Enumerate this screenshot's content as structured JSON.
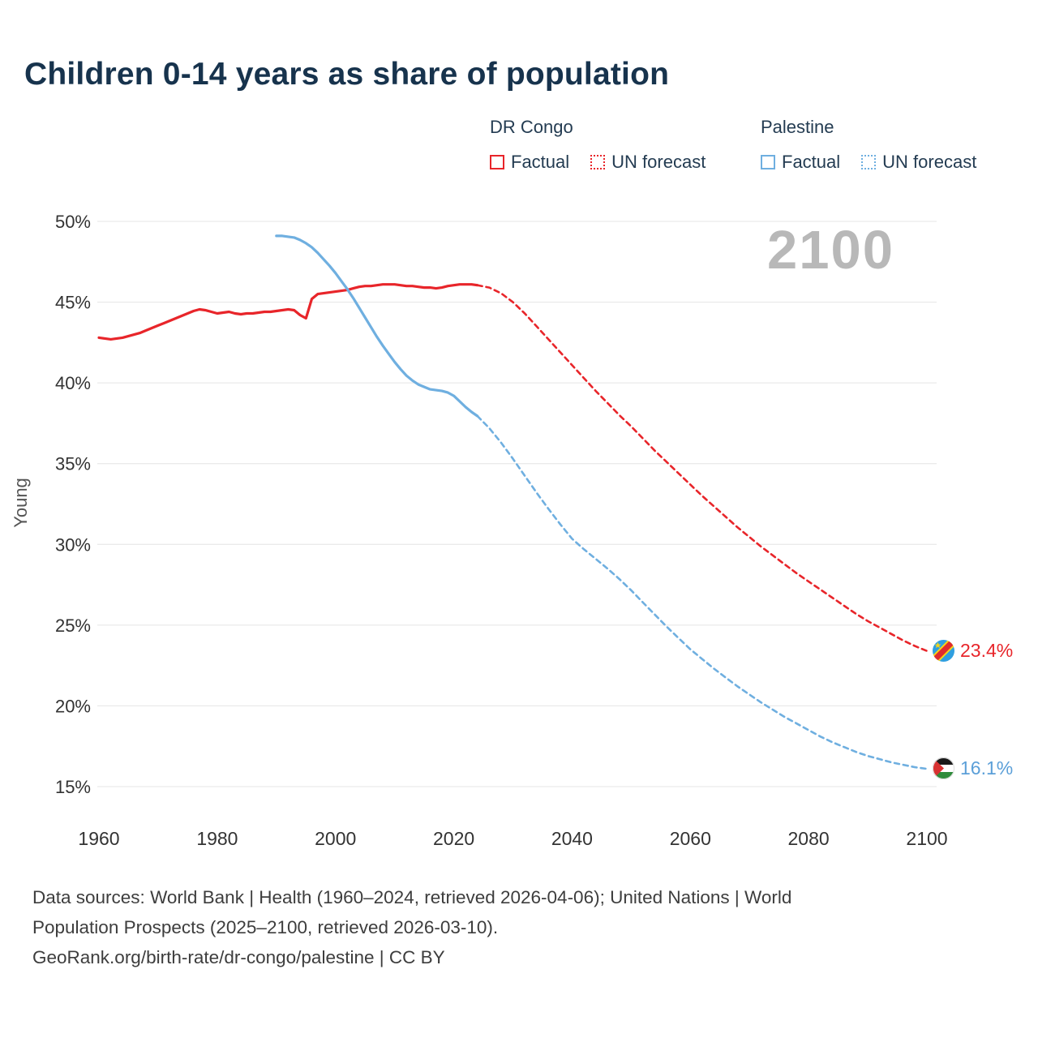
{
  "title": "Children 0-14 years as share of population",
  "watermark": "2100",
  "ylabel": "Young",
  "legend": {
    "groups": [
      {
        "name": "DR Congo",
        "color": "#e8252a",
        "items": [
          {
            "label": "Factual",
            "style": "solid"
          },
          {
            "label": "UN forecast",
            "style": "dotted"
          }
        ]
      },
      {
        "name": "Palestine",
        "color": "#6fafe0",
        "items": [
          {
            "label": "Factual",
            "style": "solid"
          },
          {
            "label": "UN forecast",
            "style": "dotted"
          }
        ]
      }
    ]
  },
  "end_labels": [
    {
      "value": "23.4%",
      "color": "#e8252a",
      "flag": "dr-congo"
    },
    {
      "value": "16.1%",
      "color": "#5b9fd8",
      "flag": "palestine"
    }
  ],
  "footer": {
    "lines": [
      "Data sources: World Bank | Health (1960–2024, retrieved 2026-04-06); United Nations | World",
      "Population Prospects (2025–2100, retrieved 2026-03-10).",
      "GeoRank.org/birth-rate/dr-congo/palestine | CC BY"
    ]
  },
  "chart_data": {
    "type": "line",
    "title": "Children 0-14 years as share of population",
    "xlabel": "",
    "ylabel": "Young",
    "xlim": [
      1960,
      2100
    ],
    "ylim": [
      15,
      50
    ],
    "x_ticks": [
      1960,
      1980,
      2000,
      2020,
      2040,
      2060,
      2080,
      2100
    ],
    "y_ticks": [
      15,
      20,
      25,
      30,
      35,
      40,
      45,
      50
    ],
    "grid": "horizontal",
    "legend_position": "top-right",
    "series": [
      {
        "name": "DR Congo — Factual",
        "color": "#e8252a",
        "dash": "solid",
        "points": [
          [
            1960,
            42.8
          ],
          [
            1961,
            42.75
          ],
          [
            1962,
            42.7
          ],
          [
            1963,
            42.75
          ],
          [
            1964,
            42.8
          ],
          [
            1965,
            42.9
          ],
          [
            1966,
            43.0
          ],
          [
            1967,
            43.1
          ],
          [
            1968,
            43.25
          ],
          [
            1969,
            43.4
          ],
          [
            1970,
            43.55
          ],
          [
            1971,
            43.7
          ],
          [
            1972,
            43.85
          ],
          [
            1973,
            44.0
          ],
          [
            1974,
            44.15
          ],
          [
            1975,
            44.3
          ],
          [
            1976,
            44.45
          ],
          [
            1977,
            44.55
          ],
          [
            1978,
            44.5
          ],
          [
            1979,
            44.4
          ],
          [
            1980,
            44.3
          ],
          [
            1981,
            44.35
          ],
          [
            1982,
            44.4
          ],
          [
            1983,
            44.3
          ],
          [
            1984,
            44.25
          ],
          [
            1985,
            44.3
          ],
          [
            1986,
            44.3
          ],
          [
            1987,
            44.35
          ],
          [
            1988,
            44.4
          ],
          [
            1989,
            44.4
          ],
          [
            1990,
            44.45
          ],
          [
            1991,
            44.5
          ],
          [
            1992,
            44.55
          ],
          [
            1993,
            44.5
          ],
          [
            1994,
            44.2
          ],
          [
            1995,
            44.0
          ],
          [
            1996,
            45.2
          ],
          [
            1997,
            45.5
          ],
          [
            1998,
            45.55
          ],
          [
            1999,
            45.6
          ],
          [
            2000,
            45.65
          ],
          [
            2001,
            45.7
          ],
          [
            2002,
            45.75
          ],
          [
            2003,
            45.85
          ],
          [
            2004,
            45.95
          ],
          [
            2005,
            46.0
          ],
          [
            2006,
            46.0
          ],
          [
            2007,
            46.05
          ],
          [
            2008,
            46.1
          ],
          [
            2009,
            46.1
          ],
          [
            2010,
            46.1
          ],
          [
            2011,
            46.05
          ],
          [
            2012,
            46.0
          ],
          [
            2013,
            46.0
          ],
          [
            2014,
            45.95
          ],
          [
            2015,
            45.9
          ],
          [
            2016,
            45.9
          ],
          [
            2017,
            45.85
          ],
          [
            2018,
            45.9
          ],
          [
            2019,
            46.0
          ],
          [
            2020,
            46.05
          ],
          [
            2021,
            46.1
          ],
          [
            2022,
            46.1
          ],
          [
            2023,
            46.1
          ],
          [
            2024,
            46.05
          ]
        ]
      },
      {
        "name": "DR Congo — UN forecast",
        "color": "#e8252a",
        "dash": "dashed",
        "points": [
          [
            2024,
            46.05
          ],
          [
            2026,
            45.9
          ],
          [
            2028,
            45.55
          ],
          [
            2030,
            45.0
          ],
          [
            2032,
            44.3
          ],
          [
            2034,
            43.5
          ],
          [
            2036,
            42.7
          ],
          [
            2038,
            41.9
          ],
          [
            2040,
            41.1
          ],
          [
            2042,
            40.3
          ],
          [
            2044,
            39.5
          ],
          [
            2046,
            38.75
          ],
          [
            2048,
            38.0
          ],
          [
            2050,
            37.3
          ],
          [
            2052,
            36.55
          ],
          [
            2054,
            35.8
          ],
          [
            2056,
            35.1
          ],
          [
            2058,
            34.4
          ],
          [
            2060,
            33.7
          ],
          [
            2062,
            33.0
          ],
          [
            2064,
            32.35
          ],
          [
            2066,
            31.7
          ],
          [
            2068,
            31.05
          ],
          [
            2070,
            30.45
          ],
          [
            2072,
            29.85
          ],
          [
            2074,
            29.3
          ],
          [
            2076,
            28.75
          ],
          [
            2078,
            28.2
          ],
          [
            2080,
            27.7
          ],
          [
            2082,
            27.2
          ],
          [
            2084,
            26.7
          ],
          [
            2086,
            26.2
          ],
          [
            2088,
            25.7
          ],
          [
            2090,
            25.25
          ],
          [
            2092,
            24.85
          ],
          [
            2094,
            24.45
          ],
          [
            2096,
            24.05
          ],
          [
            2098,
            23.7
          ],
          [
            2100,
            23.4
          ]
        ]
      },
      {
        "name": "Palestine — Factual",
        "color": "#6fafe0",
        "dash": "solid",
        "points": [
          [
            1990,
            49.1
          ],
          [
            1991,
            49.1
          ],
          [
            1992,
            49.05
          ],
          [
            1993,
            49.0
          ],
          [
            1994,
            48.85
          ],
          [
            1995,
            48.65
          ],
          [
            1996,
            48.4
          ],
          [
            1997,
            48.05
          ],
          [
            1998,
            47.65
          ],
          [
            1999,
            47.25
          ],
          [
            2000,
            46.8
          ],
          [
            2001,
            46.3
          ],
          [
            2002,
            45.8
          ],
          [
            2003,
            45.25
          ],
          [
            2004,
            44.65
          ],
          [
            2005,
            44.05
          ],
          [
            2006,
            43.45
          ],
          [
            2007,
            42.85
          ],
          [
            2008,
            42.3
          ],
          [
            2009,
            41.8
          ],
          [
            2010,
            41.3
          ],
          [
            2011,
            40.85
          ],
          [
            2012,
            40.45
          ],
          [
            2013,
            40.15
          ],
          [
            2014,
            39.9
          ],
          [
            2015,
            39.75
          ],
          [
            2016,
            39.6
          ],
          [
            2017,
            39.55
          ],
          [
            2018,
            39.5
          ],
          [
            2019,
            39.4
          ],
          [
            2020,
            39.2
          ],
          [
            2021,
            38.85
          ],
          [
            2022,
            38.5
          ],
          [
            2023,
            38.2
          ],
          [
            2024,
            37.95
          ]
        ]
      },
      {
        "name": "Palestine — UN forecast",
        "color": "#6fafe0",
        "dash": "dashed",
        "points": [
          [
            2024,
            37.95
          ],
          [
            2026,
            37.2
          ],
          [
            2028,
            36.3
          ],
          [
            2030,
            35.3
          ],
          [
            2032,
            34.25
          ],
          [
            2034,
            33.2
          ],
          [
            2036,
            32.2
          ],
          [
            2038,
            31.25
          ],
          [
            2040,
            30.35
          ],
          [
            2042,
            29.7
          ],
          [
            2044,
            29.1
          ],
          [
            2046,
            28.5
          ],
          [
            2048,
            27.85
          ],
          [
            2050,
            27.15
          ],
          [
            2052,
            26.4
          ],
          [
            2054,
            25.65
          ],
          [
            2056,
            24.9
          ],
          [
            2058,
            24.2
          ],
          [
            2060,
            23.5
          ],
          [
            2062,
            22.9
          ],
          [
            2064,
            22.3
          ],
          [
            2066,
            21.75
          ],
          [
            2068,
            21.2
          ],
          [
            2070,
            20.7
          ],
          [
            2072,
            20.2
          ],
          [
            2074,
            19.75
          ],
          [
            2076,
            19.3
          ],
          [
            2078,
            18.9
          ],
          [
            2080,
            18.5
          ],
          [
            2082,
            18.1
          ],
          [
            2084,
            17.75
          ],
          [
            2086,
            17.45
          ],
          [
            2088,
            17.15
          ],
          [
            2090,
            16.9
          ],
          [
            2092,
            16.7
          ],
          [
            2094,
            16.5
          ],
          [
            2096,
            16.35
          ],
          [
            2098,
            16.2
          ],
          [
            2100,
            16.1
          ]
        ]
      }
    ]
  }
}
